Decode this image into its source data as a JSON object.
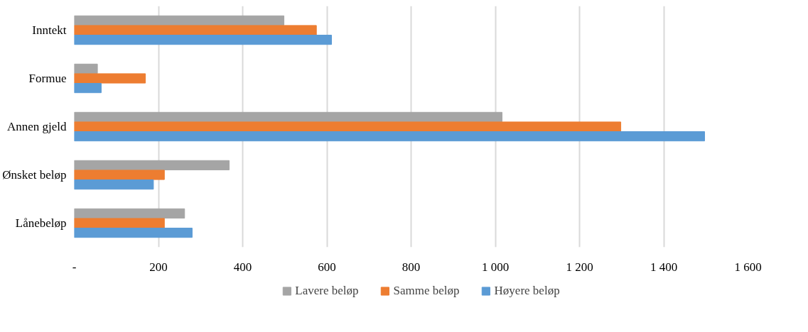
{
  "chart_data": {
    "type": "bar",
    "orientation": "horizontal",
    "categories": [
      "Inntekt",
      "Formue",
      "Annen gjeld",
      "Ønsket beløp",
      "Lånebeløp"
    ],
    "series": [
      {
        "name": "Lavere beløp",
        "color": "#a5a5a5",
        "values": [
          498,
          55,
          1016,
          368,
          262
        ]
      },
      {
        "name": "Samme beløp",
        "color": "#ed7d31",
        "values": [
          575,
          169,
          1298,
          214,
          214
        ]
      },
      {
        "name": "Høyere beløp",
        "color": "#5b9bd5",
        "values": [
          611,
          64,
          1497,
          188,
          280
        ]
      }
    ],
    "xlim": [
      0,
      1600
    ],
    "xticks": [
      {
        "value": 0,
        "label": "-"
      },
      {
        "value": 200,
        "label": "200"
      },
      {
        "value": 400,
        "label": "400"
      },
      {
        "value": 600,
        "label": "600"
      },
      {
        "value": 800,
        "label": "800"
      },
      {
        "value": 1000,
        "label": "1 000"
      },
      {
        "value": 1200,
        "label": "1 200"
      },
      {
        "value": 1400,
        "label": "1 400"
      },
      {
        "value": 1600,
        "label": "1 600"
      }
    ],
    "grid": "x",
    "legend": "bottom"
  }
}
